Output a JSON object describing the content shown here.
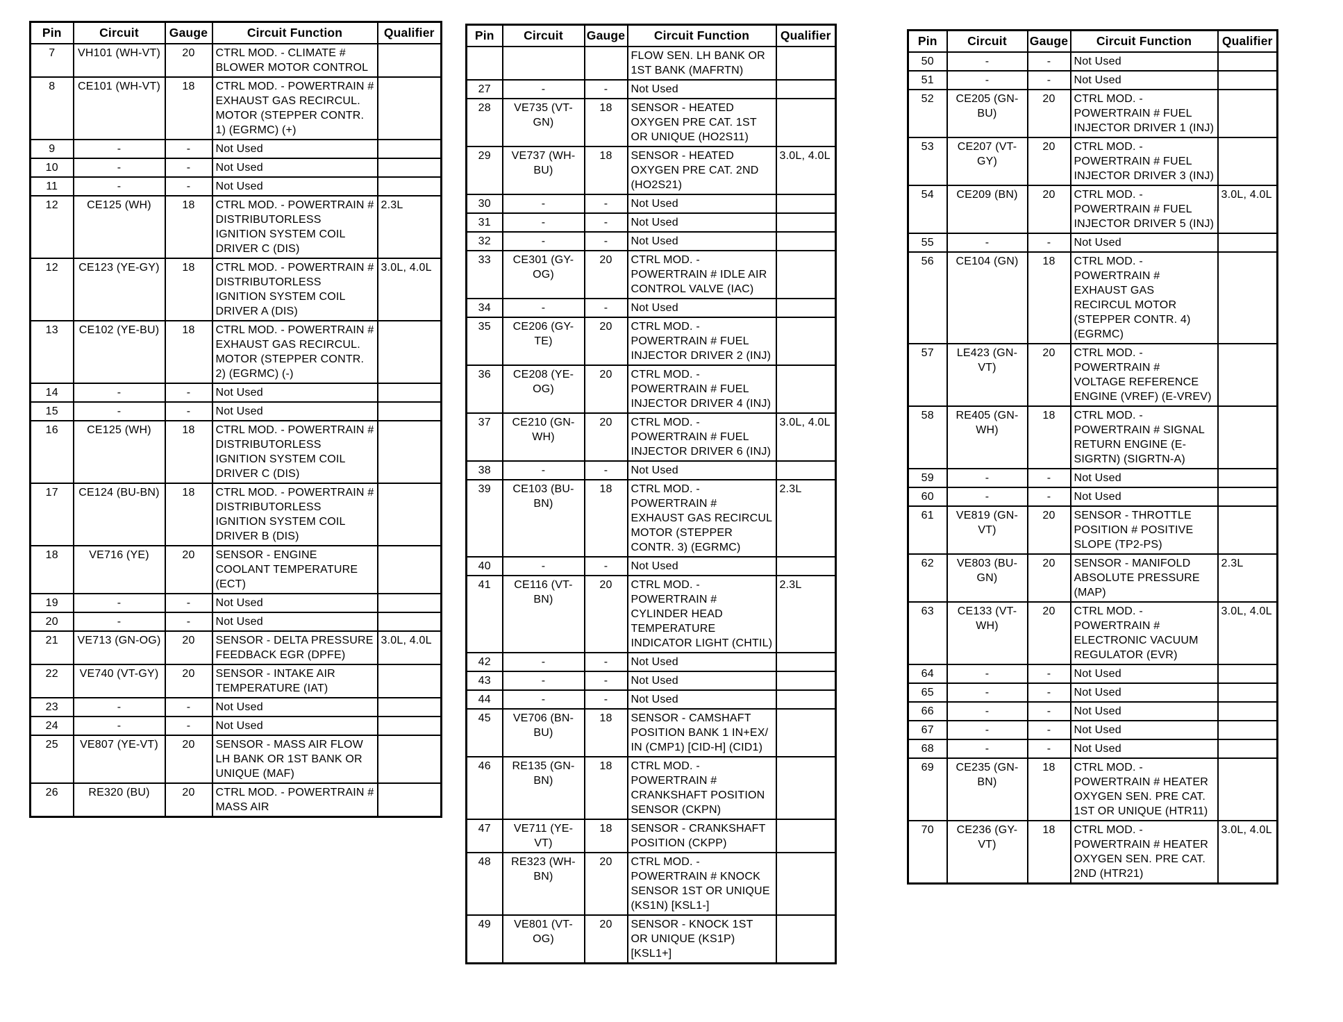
{
  "document": {
    "type": "connector-pinout-table",
    "column_headers": [
      "Pin",
      "Circuit",
      "Gauge",
      "Circuit Function",
      "Qualifier"
    ],
    "column_keys": [
      "pin",
      "circuit",
      "gauge",
      "circuit-function",
      "qualifier"
    ]
  },
  "tables": [
    {
      "name": "pins-7-26",
      "rows": [
        [
          "7",
          "VH101 (WH-VT)",
          "20",
          "CTRL MOD. - CLIMATE # BLOWER MOTOR CONTROL",
          ""
        ],
        [
          "8",
          "CE101 (WH-VT)",
          "18",
          "CTRL MOD. - POWERTRAIN # EXHAUST GAS RECIRCUL. MOTOR (STEPPER CONTR. 1) (EGRMC) (+)",
          ""
        ],
        [
          "9",
          "-",
          "-",
          "Not Used",
          ""
        ],
        [
          "10",
          "-",
          "-",
          "Not Used",
          ""
        ],
        [
          "11",
          "-",
          "-",
          "Not Used",
          ""
        ],
        [
          "12",
          "CE125 (WH)",
          "18",
          "CTRL MOD. - POWERTRAIN # DISTRIBUTORLESS IGNITION SYSTEM COIL DRIVER C (DIS)",
          "2.3L"
        ],
        [
          "12",
          "CE123 (YE-GY)",
          "18",
          "CTRL MOD. - POWERTRAIN # DISTRIBUTORLESS IGNITION SYSTEM COIL DRIVER A (DIS)",
          "3.0L, 4.0L"
        ],
        [
          "13",
          "CE102 (YE-BU)",
          "18",
          "CTRL MOD. - POWERTRAIN # EXHAUST GAS RECIRCUL. MOTOR (STEPPER CONTR. 2) (EGRMC) (-)",
          ""
        ],
        [
          "14",
          "-",
          "-",
          "Not Used",
          ""
        ],
        [
          "15",
          "-",
          "-",
          "Not Used",
          ""
        ],
        [
          "16",
          "CE125 (WH)",
          "18",
          "CTRL MOD. - POWERTRAIN # DISTRIBUTORLESS IGNITION SYSTEM COIL DRIVER C (DIS)",
          ""
        ],
        [
          "17",
          "CE124 (BU-BN)",
          "18",
          "CTRL MOD. - POWERTRAIN # DISTRIBUTORLESS IGNITION SYSTEM COIL DRIVER B (DIS)",
          ""
        ],
        [
          "18",
          "VE716 (YE)",
          "20",
          "SENSOR - ENGINE COOLANT TEMPERATURE (ECT)",
          ""
        ],
        [
          "19",
          "-",
          "-",
          "Not Used",
          ""
        ],
        [
          "20",
          "-",
          "-",
          "Not Used",
          ""
        ],
        [
          "21",
          "VE713 (GN-OG)",
          "20",
          "SENSOR - DELTA PRESSURE FEEDBACK EGR (DPFE)",
          "3.0L, 4.0L"
        ],
        [
          "22",
          "VE740 (VT-GY)",
          "20",
          "SENSOR - INTAKE AIR TEMPERATURE (IAT)",
          ""
        ],
        [
          "23",
          "-",
          "-",
          "Not Used",
          ""
        ],
        [
          "24",
          "-",
          "-",
          "Not Used",
          ""
        ],
        [
          "25",
          "VE807 (YE-VT)",
          "20",
          "SENSOR - MASS AIR FLOW LH BANK OR 1ST BANK OR UNIQUE (MAF)",
          ""
        ],
        [
          "26",
          "RE320 (BU)",
          "20",
          "CTRL MOD. - POWERTRAIN # MASS AIR",
          ""
        ]
      ]
    },
    {
      "name": "pins-27-49",
      "rows": [
        [
          "",
          "",
          "",
          "FLOW SEN. LH BANK OR 1ST BANK (MAFRTN)",
          ""
        ],
        [
          "27",
          "-",
          "-",
          "Not Used",
          ""
        ],
        [
          "28",
          "VE735 (VT-GN)",
          "18",
          "SENSOR - HEATED OXYGEN PRE CAT. 1ST OR UNIQUE (HO2S11)",
          ""
        ],
        [
          "29",
          "VE737 (WH-BU)",
          "18",
          "SENSOR - HEATED OXYGEN PRE CAT. 2ND (HO2S21)",
          "3.0L, 4.0L"
        ],
        [
          "30",
          "-",
          "-",
          "Not Used",
          ""
        ],
        [
          "31",
          "-",
          "-",
          "Not Used",
          ""
        ],
        [
          "32",
          "-",
          "-",
          "Not Used",
          ""
        ],
        [
          "33",
          "CE301 (GY-OG)",
          "20",
          "CTRL MOD. - POWERTRAIN # IDLE AIR CONTROL VALVE (IAC)",
          ""
        ],
        [
          "34",
          "-",
          "-",
          "Not Used",
          ""
        ],
        [
          "35",
          "CE206 (GY-TE)",
          "20",
          "CTRL MOD. - POWERTRAIN # FUEL INJECTOR DRIVER 2 (INJ)",
          ""
        ],
        [
          "36",
          "CE208 (YE-OG)",
          "20",
          "CTRL MOD. - POWERTRAIN # FUEL INJECTOR DRIVER 4 (INJ)",
          ""
        ],
        [
          "37",
          "CE210 (GN-WH)",
          "20",
          "CTRL MOD. - POWERTRAIN # FUEL INJECTOR DRIVER 6 (INJ)",
          "3.0L, 4.0L"
        ],
        [
          "38",
          "-",
          "-",
          "Not Used",
          ""
        ],
        [
          "39",
          "CE103 (BU-BN)",
          "18",
          "CTRL MOD. - POWERTRAIN # EXHAUST GAS RECIRCUL MOTOR (STEPPER CONTR. 3) (EGRMC)",
          "2.3L"
        ],
        [
          "40",
          "-",
          "-",
          "Not Used",
          ""
        ],
        [
          "41",
          "CE116 (VT-BN)",
          "20",
          "CTRL MOD. - POWERTRAIN # CYLINDER HEAD TEMPERATURE INDICATOR LIGHT (CHTIL)",
          "2.3L"
        ],
        [
          "42",
          "-",
          "-",
          "Not Used",
          ""
        ],
        [
          "43",
          "-",
          "-",
          "Not Used",
          ""
        ],
        [
          "44",
          "-",
          "-",
          "Not Used",
          ""
        ],
        [
          "45",
          "VE706 (BN-BU)",
          "18",
          "SENSOR - CAMSHAFT POSITION BANK 1 IN+EX/ IN (CMP1) [CID-H] (CID1)",
          ""
        ],
        [
          "46",
          "RE135 (GN-BN)",
          "18",
          "CTRL MOD. - POWERTRAIN # CRANKSHAFT POSITION SENSOR (CKPN)",
          ""
        ],
        [
          "47",
          "VE711 (YE-VT)",
          "18",
          "SENSOR - CRANKSHAFT POSITION (CKPP)",
          ""
        ],
        [
          "48",
          "RE323 (WH-BN)",
          "20",
          "CTRL MOD. - POWERTRAIN # KNOCK SENSOR 1ST OR UNIQUE (KS1N) [KSL1-]",
          ""
        ],
        [
          "49",
          "VE801 (VT-OG)",
          "20",
          "SENSOR - KNOCK 1ST OR UNIQUE (KS1P) [KSL1+]",
          ""
        ]
      ]
    },
    {
      "name": "pins-50-70",
      "rows": [
        [
          "50",
          "-",
          "-",
          "Not Used",
          ""
        ],
        [
          "51",
          "-",
          "-",
          "Not Used",
          ""
        ],
        [
          "52",
          "CE205 (GN-BU)",
          "20",
          "CTRL MOD. - POWERTRAIN # FUEL INJECTOR DRIVER 1 (INJ)",
          ""
        ],
        [
          "53",
          "CE207 (VT-GY)",
          "20",
          "CTRL MOD. - POWERTRAIN # FUEL INJECTOR DRIVER 3 (INJ)",
          ""
        ],
        [
          "54",
          "CE209 (BN)",
          "20",
          "CTRL MOD. - POWERTRAIN # FUEL INJECTOR DRIVER 5 (INJ)",
          "3.0L, 4.0L"
        ],
        [
          "55",
          "-",
          "-",
          "Not Used",
          ""
        ],
        [
          "56",
          "CE104 (GN)",
          "18",
          "CTRL MOD. - POWERTRAIN # EXHAUST GAS RECIRCUL MOTOR (STEPPER CONTR. 4) (EGRMC)",
          ""
        ],
        [
          "57",
          "LE423 (GN-VT)",
          "20",
          "CTRL MOD. - POWERTRAIN # VOLTAGE REFERENCE ENGINE (VREF) (E-VREV)",
          ""
        ],
        [
          "58",
          "RE405 (GN-WH)",
          "18",
          "CTRL MOD. - POWERTRAIN # SIGNAL RETURN ENGINE (E-SIGRTN) (SIGRTN-A)",
          ""
        ],
        [
          "59",
          "-",
          "-",
          "Not Used",
          ""
        ],
        [
          "60",
          "-",
          "-",
          "Not Used",
          ""
        ],
        [
          "61",
          "VE819 (GN-VT)",
          "20",
          "SENSOR - THROTTLE POSITION # POSITIVE SLOPE (TP2-PS)",
          ""
        ],
        [
          "62",
          "VE803 (BU-GN)",
          "20",
          "SENSOR - MANIFOLD ABSOLUTE PRESSURE (MAP)",
          "2.3L"
        ],
        [
          "63",
          "CE133 (VT-WH)",
          "20",
          "CTRL MOD. - POWERTRAIN # ELECTRONIC VACUUM REGULATOR (EVR)",
          "3.0L, 4.0L"
        ],
        [
          "64",
          "-",
          "-",
          "Not Used",
          ""
        ],
        [
          "65",
          "-",
          "-",
          "Not Used",
          ""
        ],
        [
          "66",
          "-",
          "-",
          "Not Used",
          ""
        ],
        [
          "67",
          "-",
          "-",
          "Not Used",
          ""
        ],
        [
          "68",
          "-",
          "-",
          "Not Used",
          ""
        ],
        [
          "69",
          "CE235 (GN-BN)",
          "18",
          "CTRL MOD. - POWERTRAIN # HEATER OXYGEN SEN. PRE CAT. 1ST OR UNIQUE (HTR11)",
          ""
        ],
        [
          "70",
          "CE236 (GY-VT)",
          "18",
          "CTRL MOD. - POWERTRAIN # HEATER OXYGEN SEN. PRE CAT. 2ND (HTR21)",
          "3.0L, 4.0L"
        ]
      ]
    }
  ]
}
